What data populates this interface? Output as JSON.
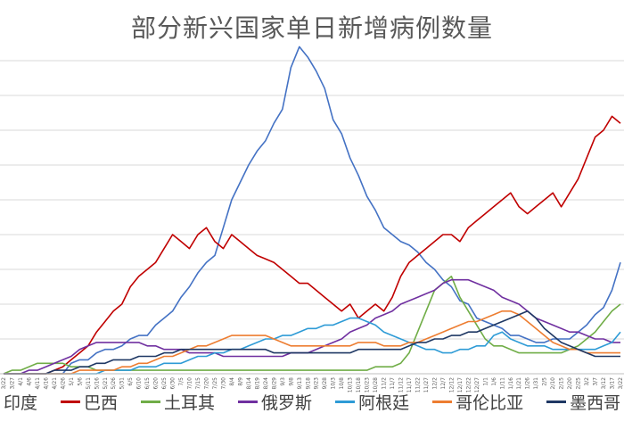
{
  "chart_data": {
    "type": "line",
    "title": "部分新兴国家单日新增病例数量",
    "xlabel": "",
    "ylabel": "",
    "ylim": [
      0,
      90000
    ],
    "grid": true,
    "legend_position": "bottom",
    "x": [
      "3/22",
      "3/27",
      "4/1",
      "4/6",
      "4/11",
      "4/16",
      "4/21",
      "4/26",
      "5/1",
      "5/6",
      "5/11",
      "5/16",
      "5/21",
      "5/26",
      "5/31",
      "6/5",
      "6/10",
      "6/15",
      "6/20",
      "6/25",
      "6/30",
      "7/5",
      "7/10",
      "7/15",
      "7/20",
      "7/25",
      "7/30",
      "8/4",
      "8/9",
      "8/14",
      "8/19",
      "8/24",
      "8/29",
      "9/3",
      "9/8",
      "9/13",
      "9/18",
      "9/23",
      "9/28",
      "10/3",
      "10/8",
      "10/13",
      "10/18",
      "10/23",
      "10/28",
      "11/2",
      "11/7",
      "11/12",
      "11/17",
      "11/22",
      "11/27",
      "12/2",
      "12/7",
      "12/12",
      "12/17",
      "12/22",
      "12/27",
      "1/1",
      "1/6",
      "1/11",
      "1/16",
      "1/21",
      "1/26",
      "1/31",
      "2/5",
      "2/10",
      "2/15",
      "2/20",
      "2/25",
      "3/2",
      "3/7",
      "3/12",
      "3/17",
      "3/22"
    ],
    "series": [
      {
        "name": "印度",
        "color": "#4472c4",
        "values": [
          0,
          0,
          0,
          0,
          0,
          0,
          0,
          0,
          3,
          4,
          4,
          6,
          7,
          7,
          8,
          10,
          11,
          11,
          14,
          16,
          18,
          22,
          25,
          29,
          32,
          34,
          42,
          50,
          55,
          60,
          64,
          67,
          72,
          76,
          88,
          94,
          91,
          87,
          82,
          73,
          69,
          62,
          57,
          51,
          47,
          42,
          40,
          38,
          37,
          35,
          32,
          30,
          27,
          25,
          21,
          20,
          16,
          15,
          14,
          13,
          11,
          11,
          10,
          9,
          9,
          10,
          10,
          10,
          12,
          14,
          17,
          19,
          24,
          32
        ]
      },
      {
        "name": "巴西",
        "color": "#c00000",
        "values": [
          0,
          0,
          0,
          0,
          0,
          0,
          1,
          2,
          4,
          6,
          8,
          12,
          15,
          18,
          20,
          25,
          28,
          30,
          32,
          36,
          40,
          38,
          36,
          40,
          42,
          38,
          36,
          40,
          38,
          36,
          34,
          33,
          32,
          30,
          28,
          26,
          26,
          24,
          22,
          20,
          18,
          20,
          16,
          18,
          20,
          18,
          22,
          28,
          32,
          34,
          36,
          38,
          40,
          40,
          38,
          42,
          44,
          46,
          48,
          50,
          52,
          48,
          46,
          48,
          50,
          52,
          48,
          52,
          56,
          62,
          68,
          70,
          74,
          72
        ]
      },
      {
        "name": "土耳其",
        "color": "#70ad47",
        "values": [
          0,
          1,
          1,
          2,
          3,
          3,
          3,
          3,
          2,
          2,
          2,
          1,
          1,
          1,
          1,
          1,
          1,
          1,
          1,
          1,
          1,
          1,
          1,
          1,
          1,
          1,
          1,
          1,
          1,
          1,
          1,
          1,
          1,
          1,
          1,
          1,
          1,
          1,
          1,
          1,
          1,
          1,
          1,
          1,
          2,
          2,
          2,
          3,
          6,
          12,
          18,
          24,
          26,
          28,
          22,
          18,
          14,
          10,
          8,
          8,
          7,
          6,
          6,
          6,
          6,
          6,
          6,
          7,
          8,
          10,
          12,
          15,
          18,
          20
        ]
      },
      {
        "name": "俄罗斯",
        "color": "#7030a0",
        "values": [
          0,
          0,
          0,
          1,
          1,
          2,
          3,
          4,
          5,
          7,
          8,
          9,
          9,
          9,
          9,
          9,
          9,
          8,
          8,
          7,
          7,
          7,
          6,
          6,
          6,
          6,
          5,
          5,
          5,
          5,
          5,
          5,
          5,
          5,
          6,
          6,
          6,
          7,
          8,
          9,
          10,
          12,
          13,
          14,
          16,
          17,
          18,
          20,
          21,
          22,
          23,
          24,
          26,
          27,
          27,
          27,
          26,
          25,
          24,
          22,
          21,
          20,
          18,
          16,
          15,
          14,
          13,
          12,
          12,
          11,
          10,
          10,
          9,
          9
        ]
      },
      {
        "name": "阿根廷",
        "color": "#2e9bd6",
        "values": [
          0,
          0,
          0,
          0,
          0,
          0,
          0,
          0,
          0,
          0,
          0,
          0,
          1,
          1,
          1,
          1,
          2,
          2,
          2,
          3,
          3,
          3,
          4,
          5,
          5,
          6,
          6,
          7,
          7,
          8,
          9,
          10,
          10,
          11,
          11,
          12,
          13,
          13,
          14,
          14,
          15,
          16,
          16,
          15,
          14,
          12,
          11,
          10,
          9,
          8,
          7,
          7,
          6,
          6,
          7,
          7,
          8,
          8,
          11,
          12,
          10,
          9,
          8,
          8,
          8,
          7,
          7,
          7,
          7,
          7,
          7,
          8,
          9,
          12
        ]
      },
      {
        "name": "哥伦比亚",
        "color": "#ed7d31",
        "values": [
          0,
          0,
          0,
          0,
          0,
          0,
          0,
          0,
          0,
          1,
          1,
          1,
          1,
          1,
          2,
          2,
          3,
          3,
          4,
          5,
          5,
          6,
          7,
          8,
          8,
          9,
          10,
          11,
          11,
          11,
          11,
          11,
          10,
          9,
          8,
          8,
          8,
          8,
          8,
          8,
          8,
          8,
          9,
          9,
          9,
          8,
          8,
          8,
          9,
          9,
          10,
          11,
          12,
          13,
          14,
          15,
          15,
          16,
          17,
          18,
          18,
          17,
          15,
          13,
          11,
          9,
          8,
          7,
          7,
          6,
          6,
          6,
          6,
          6
        ]
      },
      {
        "name": "墨西哥",
        "color": "#1f3864",
        "values": [
          0,
          0,
          0,
          0,
          0,
          0,
          1,
          1,
          1,
          2,
          2,
          3,
          3,
          4,
          4,
          4,
          5,
          5,
          5,
          6,
          6,
          7,
          7,
          7,
          7,
          7,
          7,
          7,
          7,
          7,
          7,
          7,
          6,
          6,
          6,
          6,
          6,
          6,
          6,
          6,
          6,
          6,
          7,
          7,
          7,
          7,
          7,
          7,
          8,
          9,
          9,
          10,
          10,
          11,
          11,
          12,
          12,
          13,
          14,
          15,
          16,
          17,
          18,
          16,
          13,
          11,
          9,
          8,
          7,
          6,
          5,
          5,
          5,
          5
        ]
      }
    ]
  }
}
